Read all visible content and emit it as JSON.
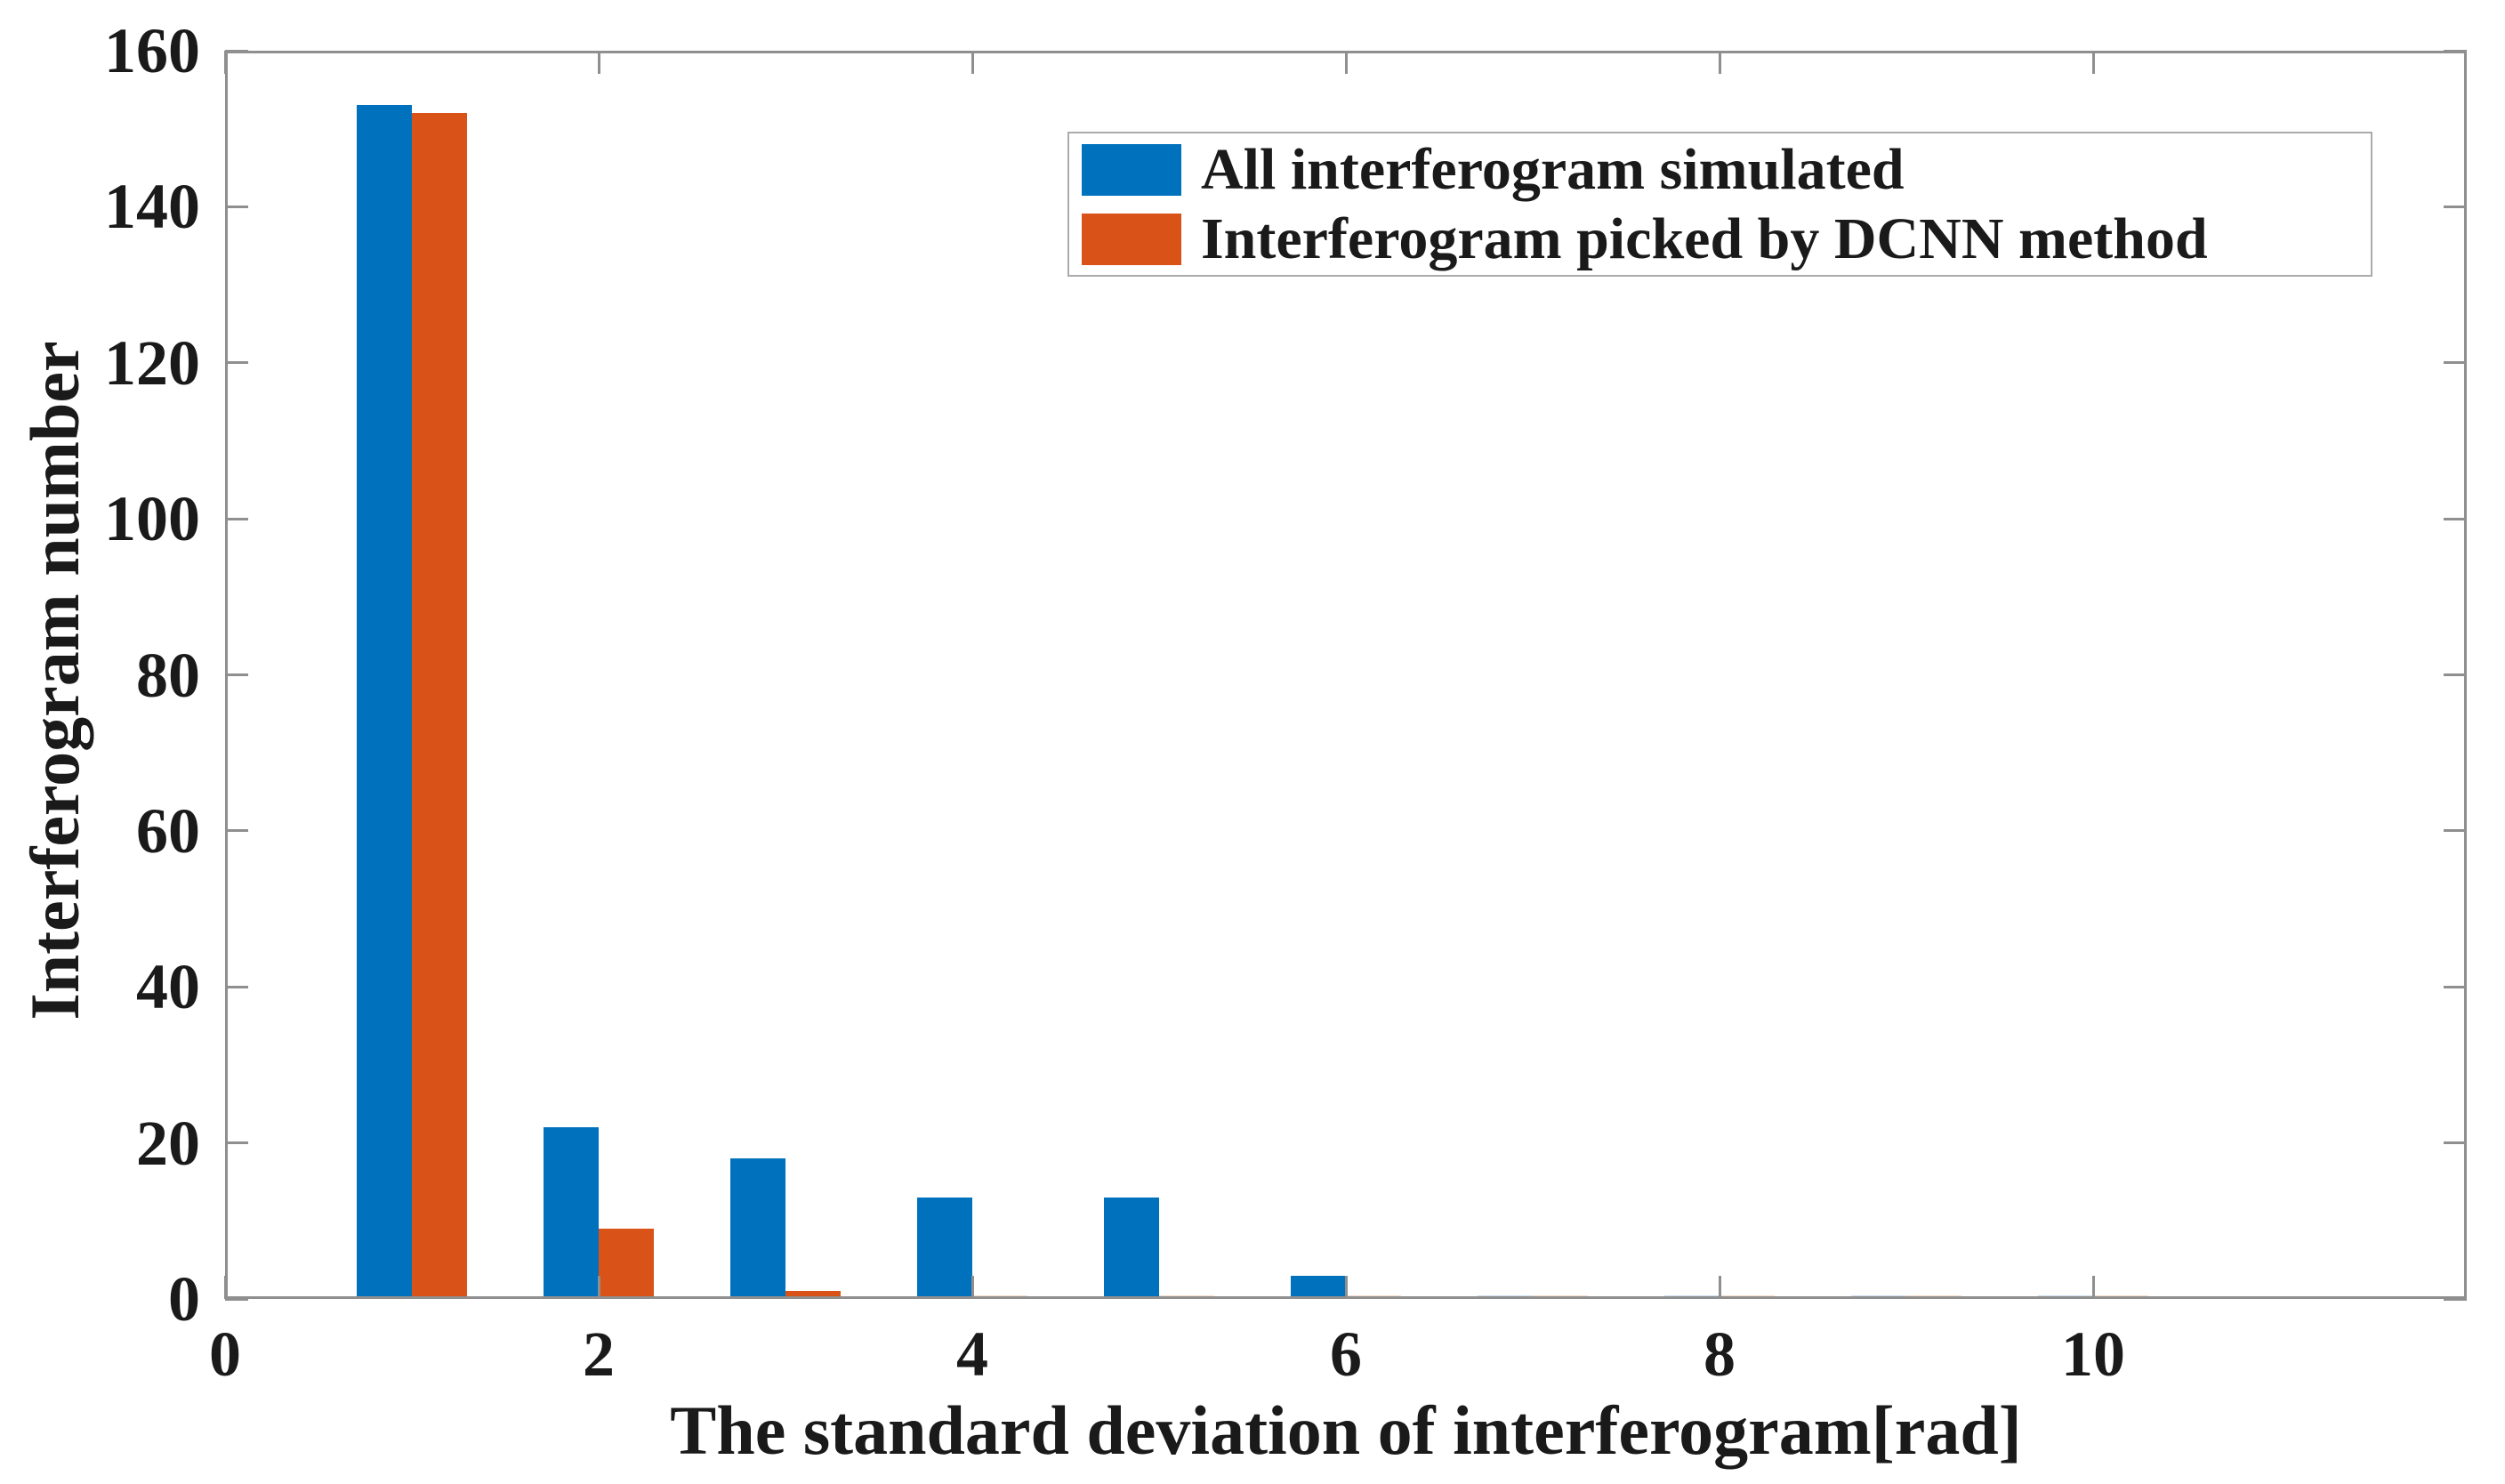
{
  "chart_data": {
    "type": "bar",
    "title": "",
    "xlabel": "The standard deviation of interferogram[rad]",
    "ylabel": "Interferogram number",
    "categories": [
      1,
      2,
      3,
      4,
      5,
      6,
      7,
      8,
      9,
      10
    ],
    "series": [
      {
        "name": "All interferogram simulated",
        "color": "#0072BD",
        "faint_color": "#c9ddf0",
        "values": [
          153,
          22,
          18,
          13,
          13,
          3,
          0.5,
          0.5,
          0.5,
          0.5
        ]
      },
      {
        "name": "Interferogram picked by DCNN method",
        "color": "#D95319",
        "faint_color": "#f8dbc9",
        "values": [
          152,
          9,
          1,
          0.5,
          0.5,
          0.5,
          0.5,
          0.5,
          0.5,
          0.5
        ]
      }
    ],
    "xlim": [
      0,
      12
    ],
    "ylim": [
      0,
      160
    ],
    "x_ticks": [
      0,
      2,
      4,
      6,
      8,
      10
    ],
    "y_ticks": [
      0,
      20,
      40,
      60,
      80,
      100,
      120,
      140,
      160
    ],
    "grid": false,
    "legend_position": "upper-right",
    "bar_width_units": 0.295
  },
  "colors": {
    "axis": "#8f8f8f",
    "text": "#1a1a1a",
    "background": "#ffffff",
    "legend_border": "#ababab"
  }
}
